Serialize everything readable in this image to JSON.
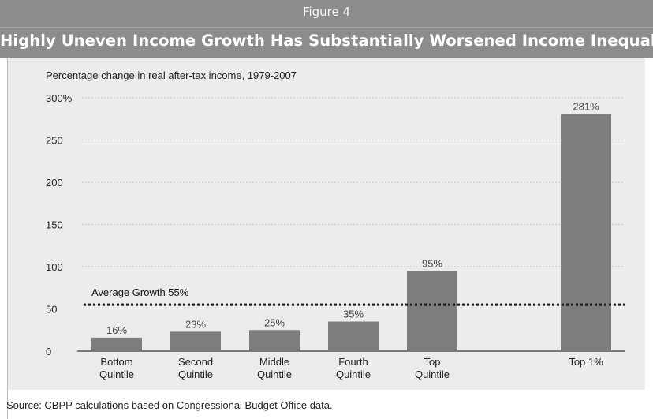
{
  "header": {
    "figure_label": "Figure 4",
    "headline": "Highly Uneven Income Growth Has Substantially Worsened Income Inequality"
  },
  "source_note": "Source:  CBPP calculations based on Congressional Budget Office data.",
  "chart_data": {
    "type": "bar",
    "ylabel": "Percentage change in real after-tax income, 1979-2007",
    "categories": [
      [
        "Bottom",
        "Quintile"
      ],
      [
        "Second",
        "Quintile"
      ],
      [
        "Middle",
        "Quintile"
      ],
      [
        "Fourth",
        "Quintile"
      ],
      [
        "Top",
        "Quintile"
      ],
      [
        "Top 1%"
      ]
    ],
    "values": [
      16,
      23,
      25,
      35,
      95,
      281
    ],
    "data_labels": [
      "16%",
      "23%",
      "25%",
      "35%",
      "95%",
      "281%"
    ],
    "ylim": [
      0,
      300
    ],
    "yticks": [
      0,
      50,
      100,
      150,
      200,
      250,
      300
    ],
    "ytick_labels": [
      "0",
      "50",
      "100",
      "150",
      "200",
      "250",
      "300%"
    ],
    "reference_line": {
      "value": 55,
      "label": "Average Growth 55%",
      "style": "dotted"
    },
    "grid": true,
    "colors": {
      "bar": "#7d7d7d",
      "panel": "#ececec",
      "banner": "#8c8c8c"
    }
  }
}
